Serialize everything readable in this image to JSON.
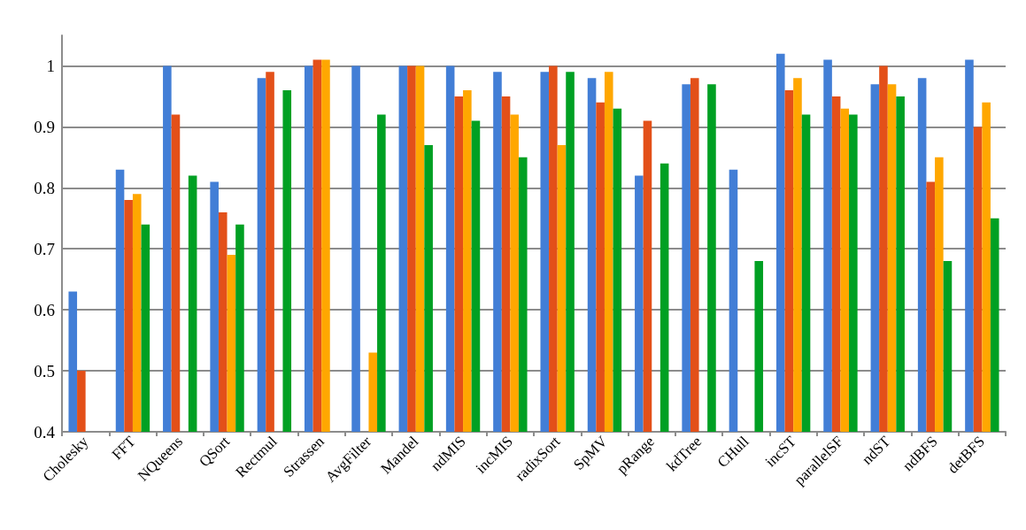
{
  "chart_data": {
    "type": "bar",
    "categories": [
      "Cholesky",
      "FFT",
      "NQueens",
      "QSort",
      "Rectmul",
      "Strassen",
      "AvgFilter",
      "Mandel",
      "ndMIS",
      "incMIS",
      "radixSort",
      "SpMV",
      "pRange",
      "kdTree",
      "CHull",
      "incST",
      "parallelSF",
      "ndST",
      "ndBFS",
      "detBFS"
    ],
    "series": [
      {
        "color": "#427ed6",
        "values": [
          0.63,
          0.83,
          1.0,
          0.81,
          0.98,
          1.0,
          1.0,
          1.0,
          1.0,
          0.99,
          0.99,
          0.98,
          0.82,
          0.97,
          0.83,
          1.02,
          1.01,
          0.97,
          0.98,
          1.01
        ]
      },
      {
        "color": "#e35019",
        "values": [
          0.5,
          0.78,
          0.92,
          0.76,
          0.99,
          1.01,
          null,
          1.0,
          0.95,
          0.95,
          1.0,
          0.94,
          0.91,
          0.98,
          null,
          0.96,
          0.95,
          1.0,
          0.81,
          0.9
        ]
      },
      {
        "color": "#ffa700",
        "values": [
          null,
          0.79,
          null,
          0.69,
          null,
          1.01,
          0.53,
          1.0,
          0.96,
          0.92,
          0.87,
          0.99,
          null,
          null,
          null,
          0.98,
          0.93,
          0.97,
          0.85,
          0.94
        ]
      },
      {
        "color": "#00a023",
        "values": [
          null,
          0.74,
          0.82,
          0.74,
          0.96,
          null,
          0.92,
          0.87,
          0.91,
          0.85,
          0.99,
          0.93,
          0.84,
          0.97,
          0.68,
          0.92,
          0.92,
          0.95,
          0.68,
          0.75
        ]
      }
    ],
    "ylim": [
      0.4,
      1.05
    ],
    "yticks": [
      0.4,
      0.5,
      0.6,
      0.7,
      0.8,
      0.9,
      1
    ],
    "grid": "y"
  }
}
